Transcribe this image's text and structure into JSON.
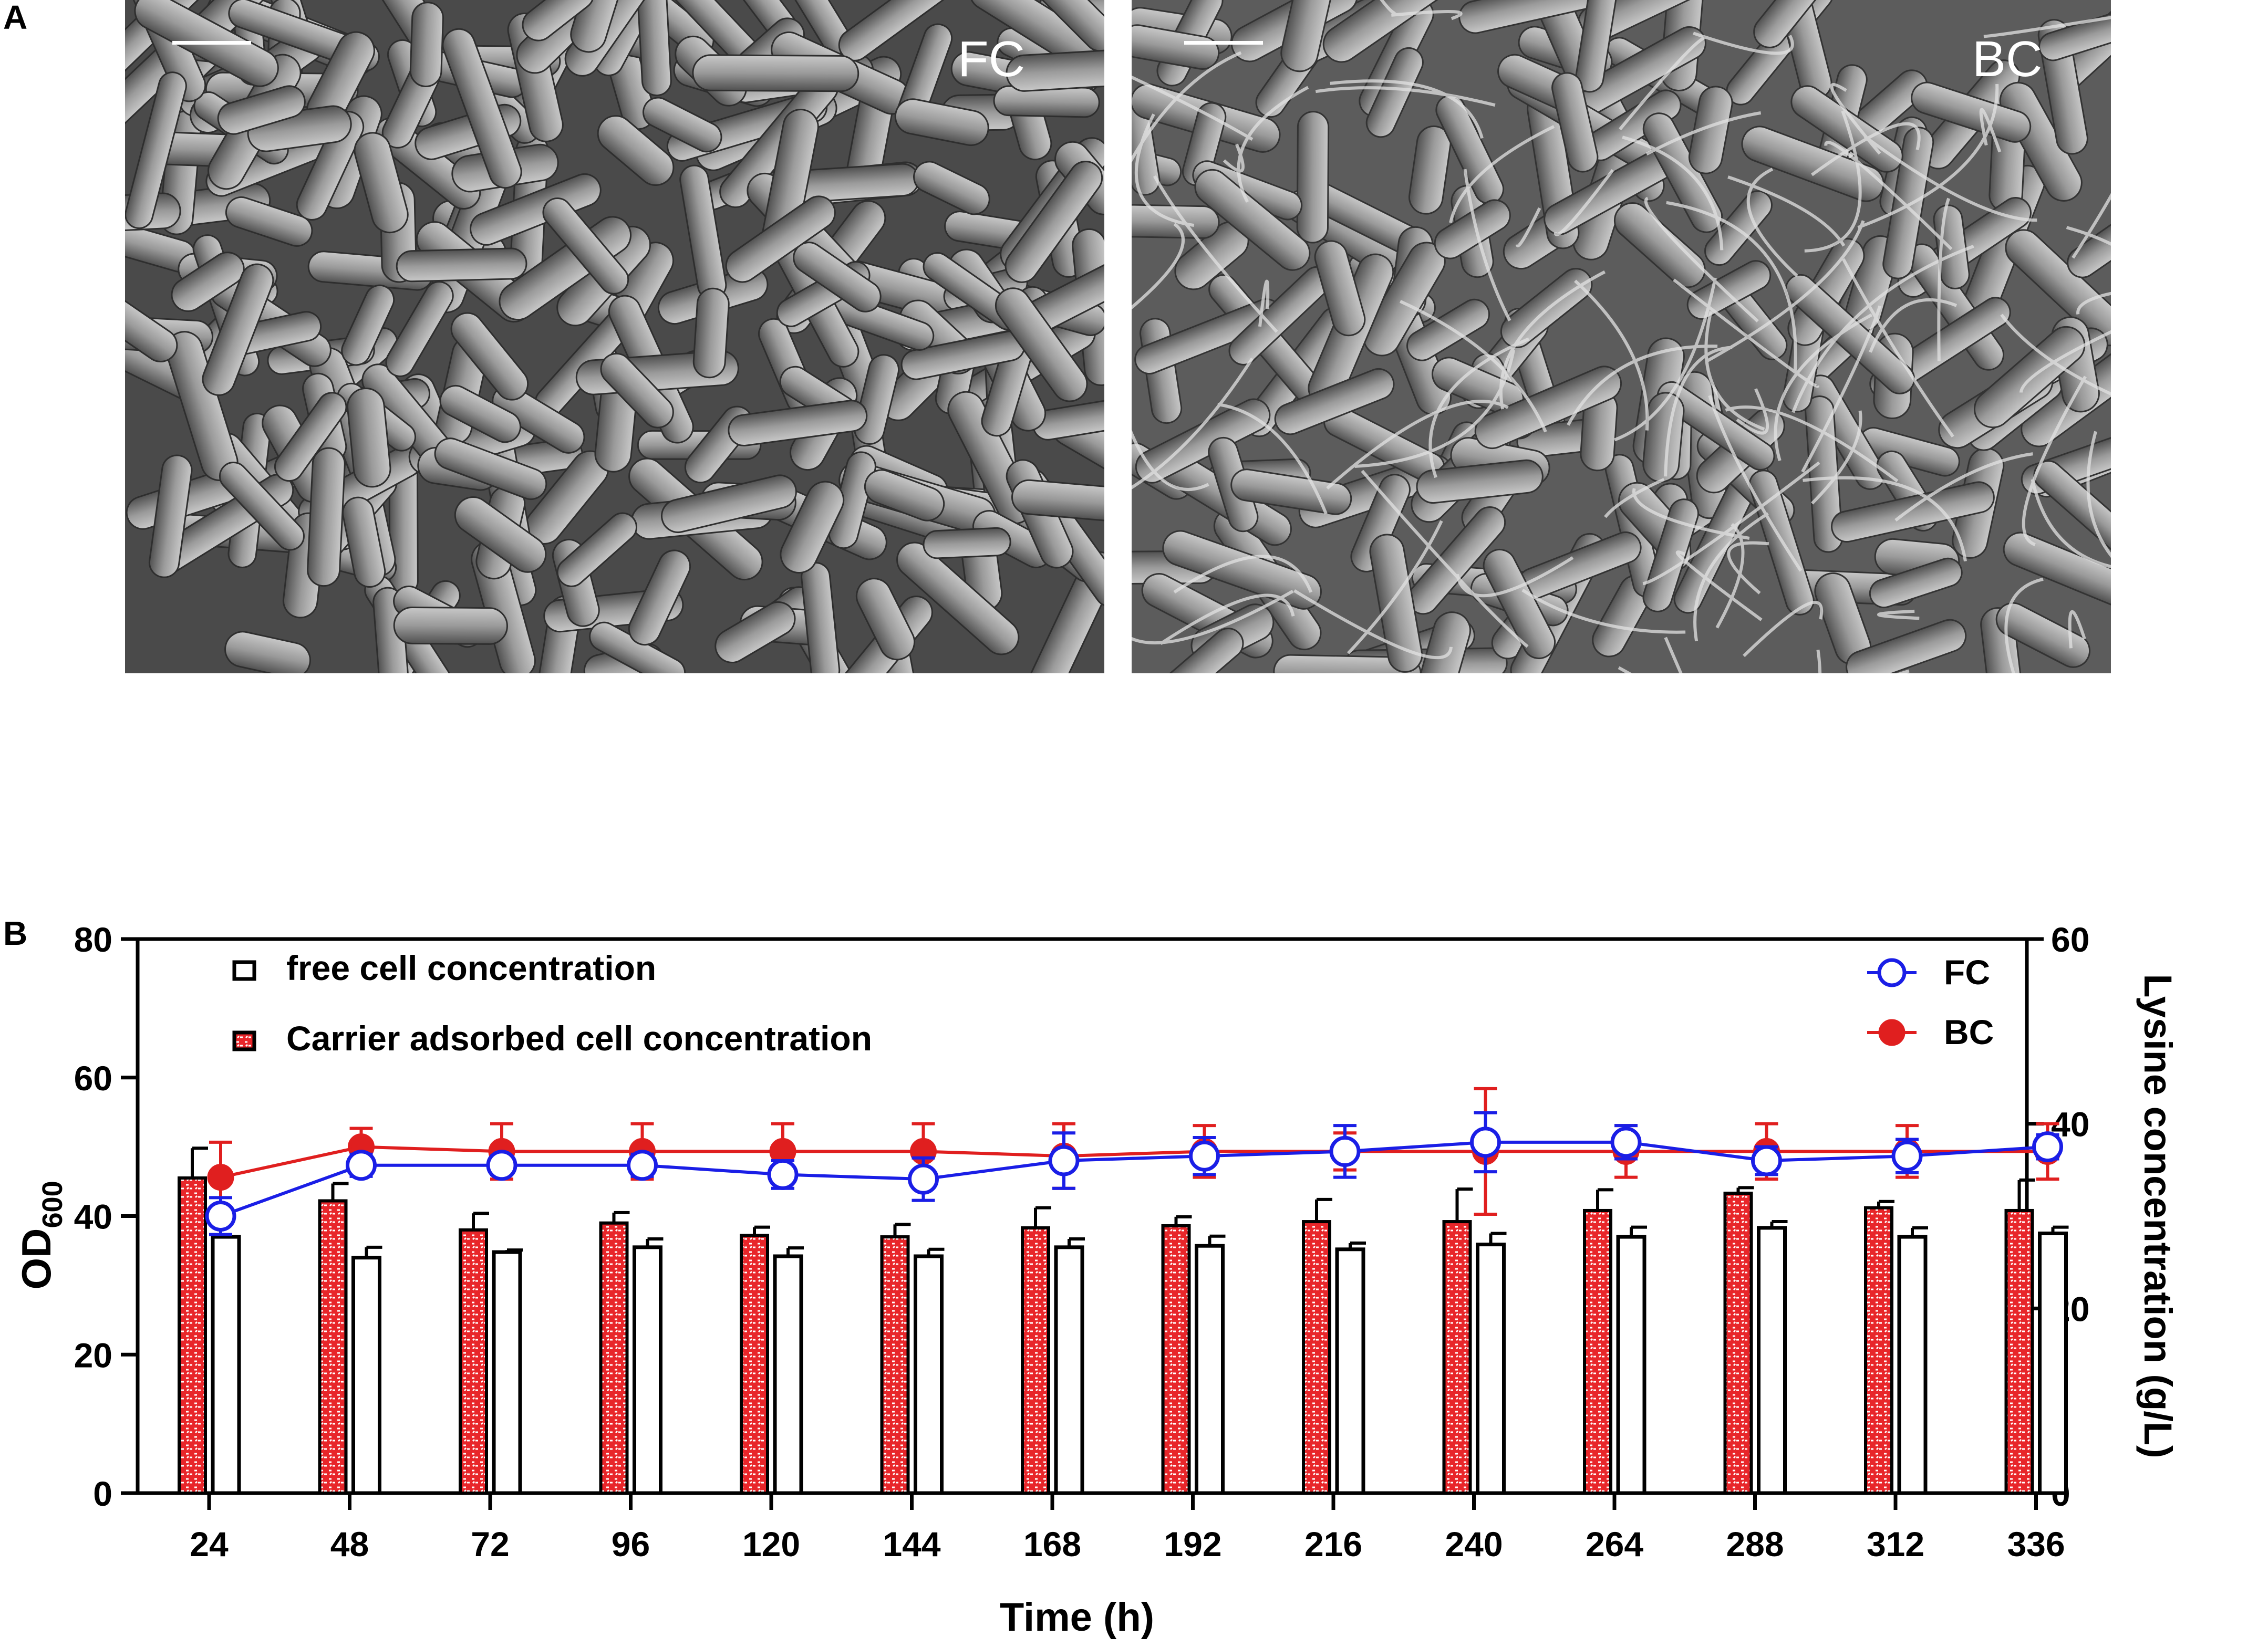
{
  "panel_a": {
    "letter": "A",
    "images": [
      {
        "label": "FC",
        "description_name": "sem-free-cells"
      },
      {
        "label": "BC",
        "description_name": "sem-biofilm-cells"
      }
    ]
  },
  "panel_b": {
    "letter": "B"
  },
  "colors": {
    "free_bar_stroke": "#000000",
    "carrier_bar_fill": "#e8262a",
    "fc_line": "#1a1ee6",
    "bc_line": "#e01f1f"
  },
  "chart_data": {
    "type": "bar",
    "xlabel": "Time (h)",
    "ylabel": "OD",
    "ylabel_subscript": "600",
    "y2label": "Lysine concentration (g/L)",
    "categories": [
      "24",
      "48",
      "72",
      "96",
      "120",
      "144",
      "168",
      "192",
      "216",
      "240",
      "264",
      "288",
      "312",
      "336"
    ],
    "ylim": [
      0,
      80
    ],
    "yticks": [
      "0",
      "20",
      "40",
      "60",
      "80"
    ],
    "y2lim": [
      0,
      60
    ],
    "y2ticks": [
      "0",
      "20",
      "40",
      "60"
    ],
    "legend_bars": [
      {
        "name": "free cell concentration"
      },
      {
        "name": "Carrier adsorbed cell concentration"
      }
    ],
    "legend_lines": [
      {
        "name": "FC"
      },
      {
        "name": "BC"
      }
    ],
    "bar_series": [
      {
        "name": "Carrier adsorbed cell concentration",
        "axis": "left",
        "values": [
          45.5,
          42.2,
          38,
          39,
          37.2,
          37,
          38.3,
          38.6,
          39.2,
          39.2,
          40.8,
          43.3,
          41.2,
          40.8
        ],
        "errors": [
          4.3,
          2.5,
          2.4,
          1.5,
          1.2,
          1.8,
          2.9,
          1.3,
          3.2,
          4.7,
          3.0,
          0.8,
          0.9,
          4.4
        ]
      },
      {
        "name": "free cell concentration",
        "axis": "left",
        "values": [
          37,
          34,
          34.8,
          35.5,
          34.2,
          34.2,
          35.5,
          35.7,
          35.2,
          35.9,
          37,
          38.3,
          37,
          37.5
        ],
        "errors": [
          0,
          1.5,
          0.3,
          1.2,
          1.2,
          1.0,
          1.2,
          1.4,
          0.9,
          1.6,
          1.4,
          0.9,
          1.3,
          0.9
        ]
      }
    ],
    "line_series": [
      {
        "name": "FC",
        "axis": "right",
        "values": [
          30,
          35.5,
          35.5,
          35.5,
          34.5,
          34,
          36,
          36.5,
          37,
          38,
          38,
          36,
          36.5,
          37.5
        ],
        "errors": [
          2.0,
          1.2,
          1.0,
          1.2,
          1.5,
          2.3,
          3.0,
          2.0,
          2.8,
          3.2,
          1.8,
          1.5,
          1.8,
          1.3
        ]
      },
      {
        "name": "BC",
        "axis": "right",
        "values": [
          34.2,
          37.5,
          37,
          37,
          37,
          37,
          36.5,
          37,
          37,
          37,
          37,
          37,
          37,
          37
        ],
        "errors": [
          3.8,
          2.0,
          3.0,
          3.0,
          3.0,
          3.0,
          3.5,
          2.8,
          2.0,
          6.8,
          2.8,
          3.0,
          2.8,
          3.0
        ]
      }
    ]
  }
}
